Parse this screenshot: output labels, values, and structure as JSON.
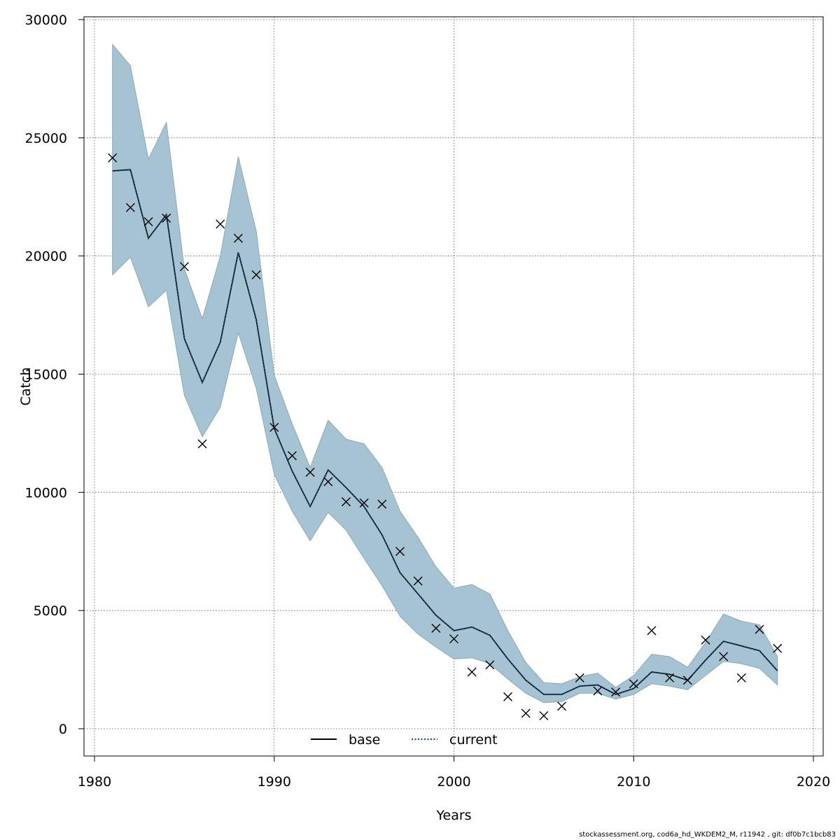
{
  "chart_data": {
    "type": "line",
    "title": "",
    "xlabel": "Years",
    "ylabel": "Catch",
    "xlim": [
      1980,
      2020
    ],
    "ylim": [
      0,
      30000
    ],
    "x_ticks": [
      1980,
      1990,
      2000,
      2010,
      2020
    ],
    "y_ticks": [
      0,
      5000,
      10000,
      15000,
      20000,
      25000,
      30000
    ],
    "grid": true,
    "legend_position": "bottom-center",
    "x": [
      1981,
      1982,
      1983,
      1984,
      1985,
      1986,
      1987,
      1988,
      1989,
      1990,
      1991,
      1992,
      1993,
      1994,
      1995,
      1996,
      1997,
      1998,
      1999,
      2000,
      2001,
      2002,
      2003,
      2004,
      2005,
      2006,
      2007,
      2008,
      2009,
      2010,
      2011,
      2012,
      2013,
      2014,
      2015,
      2016,
      2017,
      2018
    ],
    "series": [
      {
        "name": "base",
        "style": "solid",
        "color": "#000000",
        "values": [
          23600,
          23650,
          20750,
          21750,
          16500,
          14650,
          16350,
          20150,
          17300,
          12700,
          10900,
          9400,
          10950,
          10200,
          9400,
          8200,
          6600,
          5700,
          4800,
          4150,
          4300,
          3950,
          2950,
          2050,
          1450,
          1450,
          1800,
          1850,
          1450,
          1700,
          2400,
          2300,
          2050,
          2900,
          3700,
          3500,
          3300,
          2450
        ]
      },
      {
        "name": "current",
        "style": "dotted",
        "color": "#1f4e79",
        "values": [
          23600,
          23650,
          20750,
          21750,
          16500,
          14650,
          16350,
          20150,
          17300,
          12700,
          10900,
          9400,
          10950,
          10200,
          9400,
          8200,
          6600,
          5700,
          4800,
          4150,
          4300,
          3950,
          2950,
          2050,
          1450,
          1450,
          1800,
          1850,
          1450,
          1700,
          2400,
          2300,
          2050,
          2900,
          3700,
          3500,
          3300,
          2450
        ]
      }
    ],
    "band": {
      "color": "#a5c3d3",
      "upper": [
        28950,
        28050,
        24100,
        25650,
        19450,
        17350,
        20000,
        24200,
        21050,
        14950,
        12900,
        11050,
        13050,
        12250,
        12050,
        11050,
        9200,
        8100,
        6850,
        5950,
        6100,
        5700,
        4150,
        2800,
        1950,
        1900,
        2200,
        2350,
        1750,
        2250,
        3150,
        3050,
        2600,
        3650,
        4850,
        4550,
        4400,
        3050
      ],
      "lower": [
        19200,
        19950,
        17850,
        18550,
        14100,
        12350,
        13600,
        16750,
        14400,
        10750,
        9200,
        7950,
        9150,
        8400,
        7200,
        6050,
        4750,
        4000,
        3450,
        2950,
        3000,
        2750,
        2100,
        1500,
        1100,
        1150,
        1500,
        1500,
        1250,
        1450,
        1900,
        1800,
        1650,
        2250,
        2850,
        2750,
        2550,
        1850
      ]
    },
    "observations": [
      {
        "x": 1981,
        "y": 24150
      },
      {
        "x": 1982,
        "y": 22050
      },
      {
        "x": 1983,
        "y": 21450
      },
      {
        "x": 1984,
        "y": 21600
      },
      {
        "x": 1985,
        "y": 19550
      },
      {
        "x": 1986,
        "y": 12050
      },
      {
        "x": 1987,
        "y": 21350
      },
      {
        "x": 1988,
        "y": 20750
      },
      {
        "x": 1989,
        "y": 19200
      },
      {
        "x": 1990,
        "y": 12750
      },
      {
        "x": 1991,
        "y": 11550
      },
      {
        "x": 1992,
        "y": 10850
      },
      {
        "x": 1993,
        "y": 10450
      },
      {
        "x": 1994,
        "y": 9600
      },
      {
        "x": 1995,
        "y": 9550
      },
      {
        "x": 1996,
        "y": 9500
      },
      {
        "x": 1997,
        "y": 7500
      },
      {
        "x": 1998,
        "y": 6250
      },
      {
        "x": 1999,
        "y": 4250
      },
      {
        "x": 2000,
        "y": 3800
      },
      {
        "x": 2001,
        "y": 2400
      },
      {
        "x": 2002,
        "y": 2700
      },
      {
        "x": 2003,
        "y": 1350
      },
      {
        "x": 2004,
        "y": 650
      },
      {
        "x": 2005,
        "y": 550
      },
      {
        "x": 2006,
        "y": 950
      },
      {
        "x": 2007,
        "y": 2150
      },
      {
        "x": 2008,
        "y": 1600
      },
      {
        "x": 2009,
        "y": 1550
      },
      {
        "x": 2010,
        "y": 1900
      },
      {
        "x": 2011,
        "y": 4150
      },
      {
        "x": 2012,
        "y": 2150
      },
      {
        "x": 2013,
        "y": 2050
      },
      {
        "x": 2014,
        "y": 3750
      },
      {
        "x": 2015,
        "y": 3050
      },
      {
        "x": 2016,
        "y": 2150
      },
      {
        "x": 2017,
        "y": 4200
      },
      {
        "x": 2018,
        "y": 3400
      }
    ]
  },
  "footer": {
    "text": "stockassessment.org, cod6a_hd_WKDEM2_M, r11942 , git: df0b7c1bcb83"
  }
}
